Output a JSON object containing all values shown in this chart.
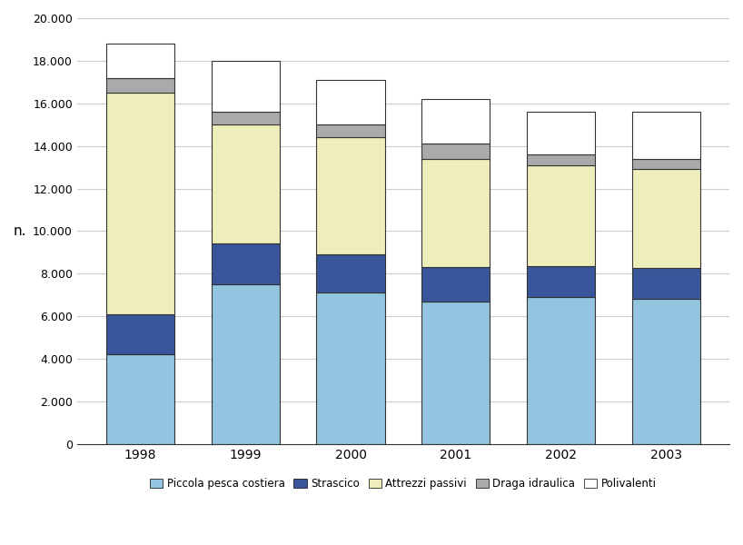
{
  "years": [
    "1998",
    "1999",
    "2000",
    "2001",
    "2002",
    "2003"
  ],
  "piccola_pesca_costiera": [
    4200,
    7500,
    7100,
    6700,
    6900,
    6800
  ],
  "strascico": [
    1900,
    1900,
    1800,
    1600,
    1450,
    1450
  ],
  "attrezzi_passivi": [
    10400,
    5600,
    5500,
    5100,
    4750,
    4650
  ],
  "draga_idraulica": [
    700,
    600,
    600,
    700,
    500,
    500
  ],
  "polivalenti": [
    1600,
    2400,
    2100,
    2100,
    2000,
    2200
  ],
  "colors": {
    "piccola_pesca_costiera": "#93C4E0",
    "strascico": "#3A569B",
    "attrezzi_passivi": "#EEEEBB",
    "draga_idraulica": "#AAAAAA",
    "polivalenti": "#FFFFFF"
  },
  "ylabel": "n.",
  "ylim": [
    0,
    20000
  ],
  "ytick_step": 2000,
  "legend_labels": [
    "Piccola pesca costiera",
    "Strascico",
    "Attrezzi passivi",
    "Draga idraulica",
    "Polivalenti"
  ],
  "bar_width": 0.65,
  "background_color": "#FFFFFF",
  "grid_color": "#CCCCCC",
  "edgecolor": "#333333"
}
